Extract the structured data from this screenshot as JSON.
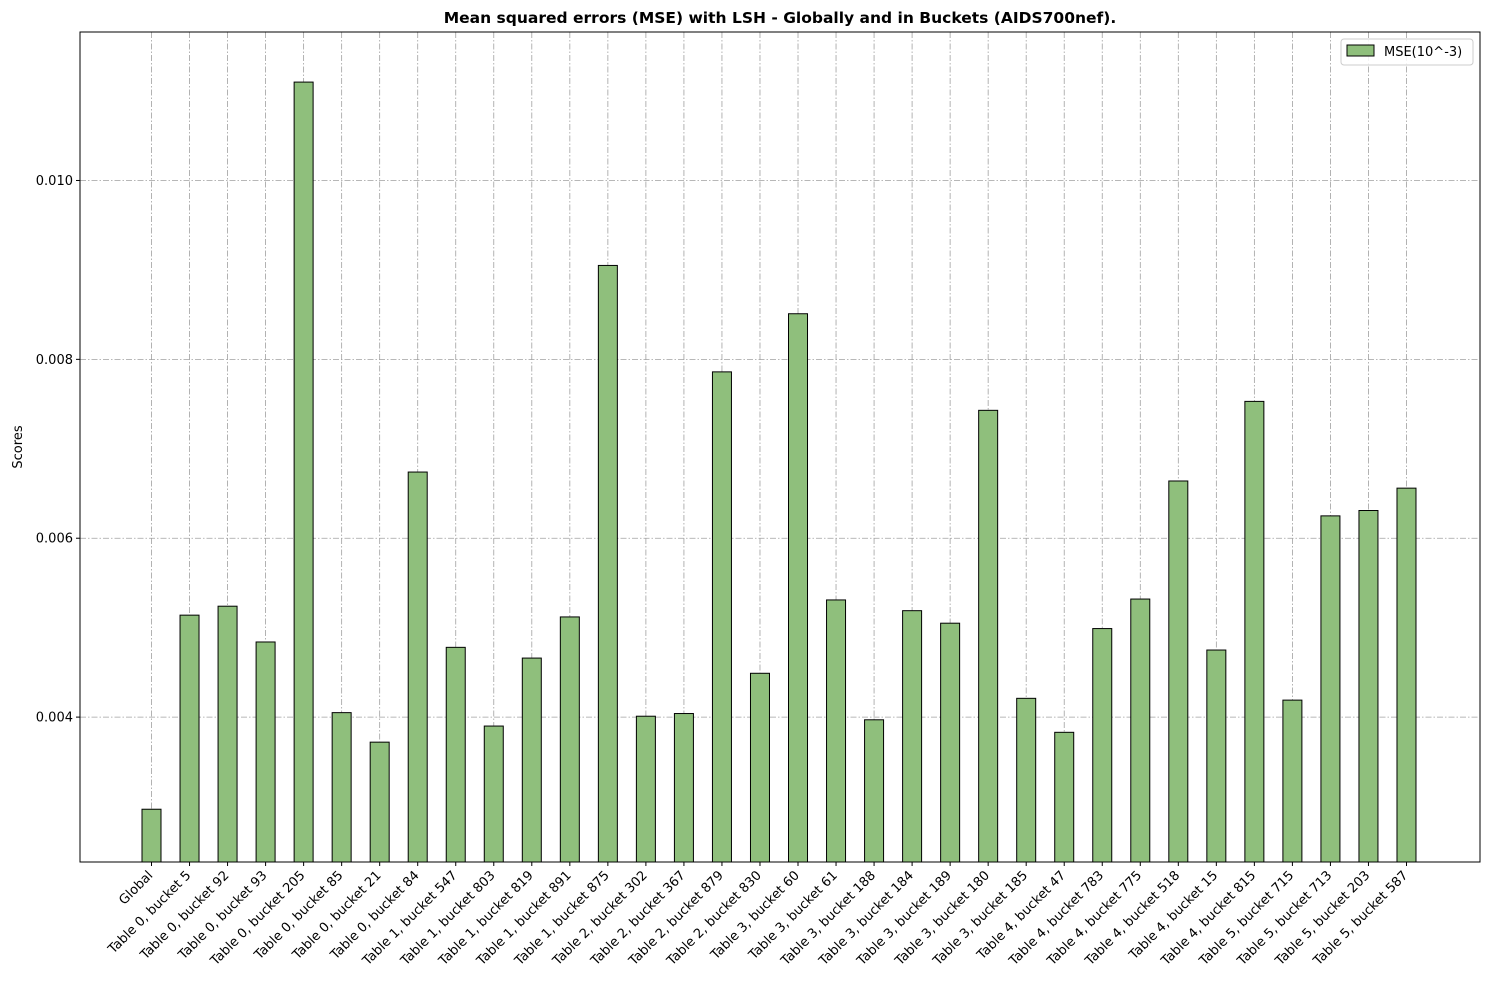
{
  "chart_data": {
    "type": "bar",
    "title": "Mean squared errors (MSE) with LSH - Globally and in Buckets (AIDS700nef).",
    "xlabel": "",
    "ylabel": "Scores",
    "ylim": [
      0.00238,
      0.01166
    ],
    "yticks": [
      0.004,
      0.006,
      0.008,
      0.01
    ],
    "ytick_labels": [
      "0.004",
      "0.006",
      "0.008",
      "0.010"
    ],
    "grid": true,
    "legend_position": "top-right",
    "bar_color": "#8fbf7c",
    "edge_color": "#000000",
    "categories": [
      "Global",
      "Table 0, bucket 5",
      "Table 0, bucket 92",
      "Table 0, bucket 93",
      "Table 0, bucket 205",
      "Table 0, bucket 85",
      "Table 0, bucket 21",
      "Table 0, bucket 84",
      "Table 1, bucket 547",
      "Table 1, bucket 803",
      "Table 1, bucket 819",
      "Table 1, bucket 891",
      "Table 1, bucket 875",
      "Table 2, bucket 302",
      "Table 2, bucket 367",
      "Table 2, bucket 879",
      "Table 2, bucket 830",
      "Table 3, bucket 60",
      "Table 3, bucket 61",
      "Table 3, bucket 188",
      "Table 3, bucket 184",
      "Table 3, bucket 189",
      "Table 3, bucket 180",
      "Table 3, bucket 185",
      "Table 4, bucket 47",
      "Table 4, bucket 783",
      "Table 4, bucket 775",
      "Table 4, bucket 518",
      "Table 4, bucket 15",
      "Table 4, bucket 815",
      "Table 5, bucket 715",
      "Table 5, bucket 713",
      "Table 5, bucket 203",
      "Table 5, bucket 587"
    ],
    "series": [
      {
        "name": "MSE(10^-3)",
        "values": [
          0.00297,
          0.00514,
          0.00524,
          0.00484,
          0.0111,
          0.00405,
          0.00372,
          0.00674,
          0.00478,
          0.0039,
          0.00466,
          0.00512,
          0.00905,
          0.00401,
          0.00404,
          0.00786,
          0.00449,
          0.00851,
          0.00531,
          0.00397,
          0.00519,
          0.00505,
          0.00743,
          0.00421,
          0.00383,
          0.00499,
          0.00532,
          0.00664,
          0.00475,
          0.00753,
          0.00419,
          0.00625,
          0.00631,
          0.00656
        ]
      }
    ]
  }
}
